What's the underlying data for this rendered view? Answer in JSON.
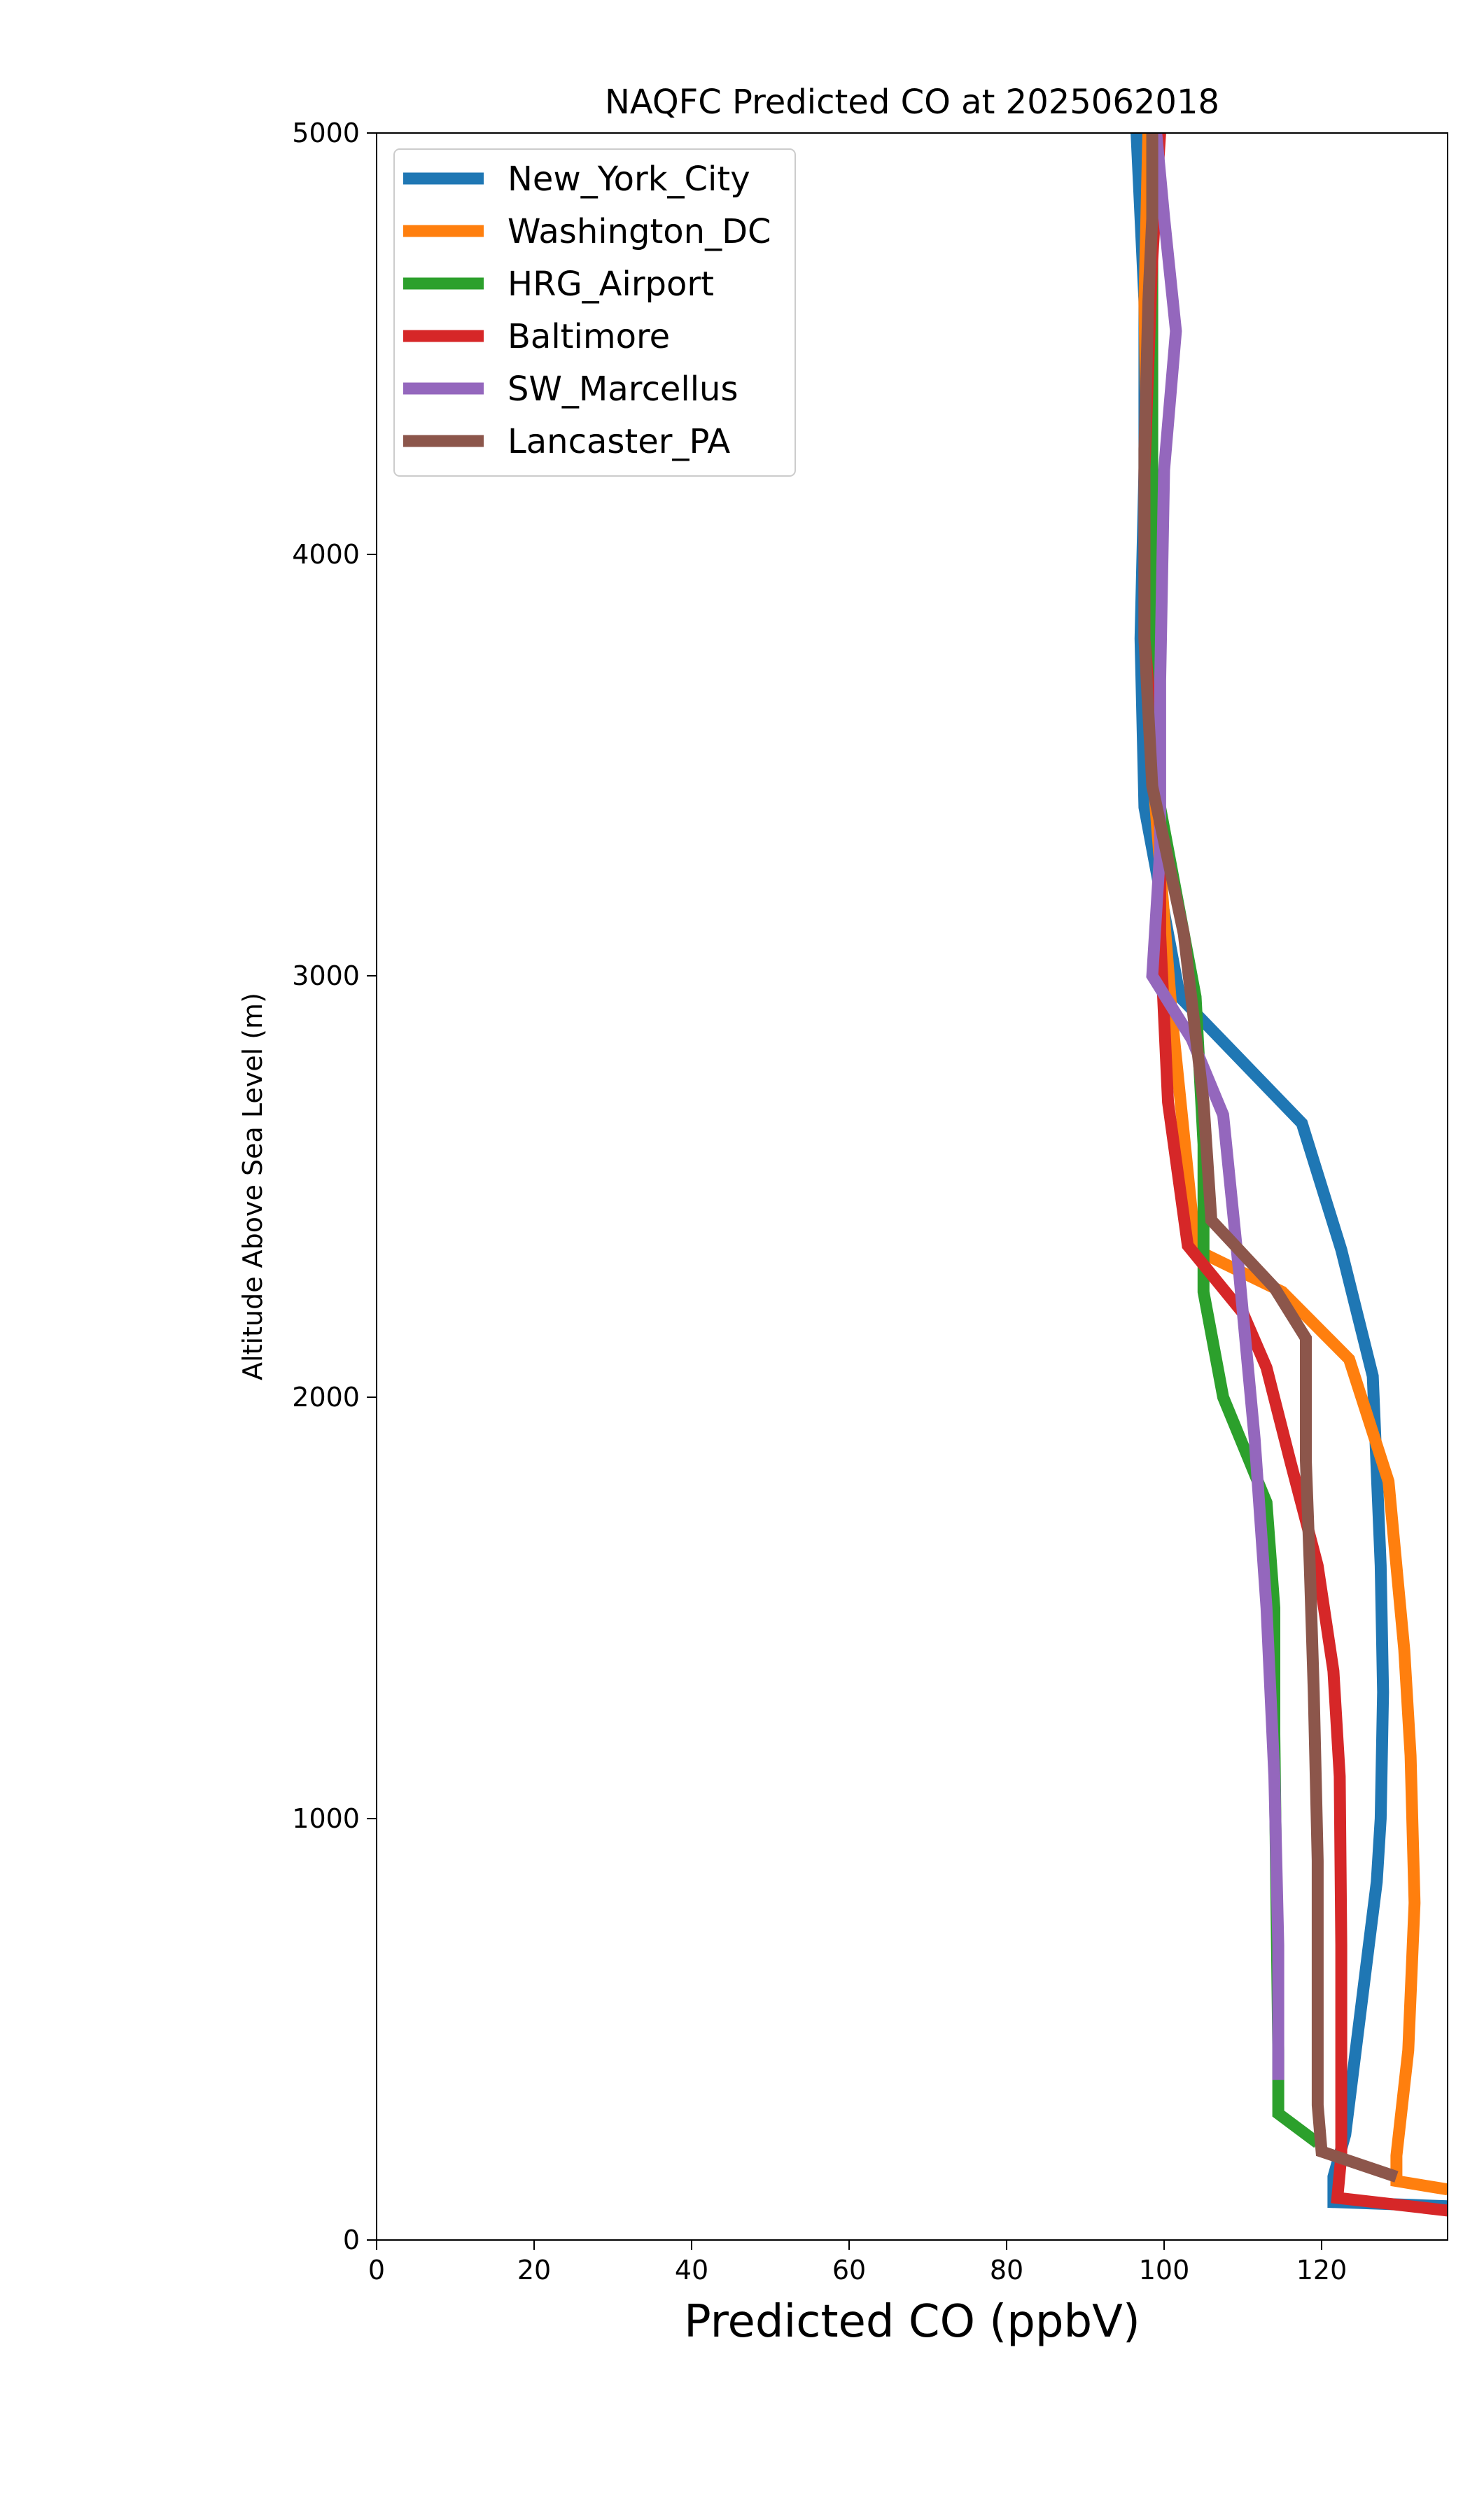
{
  "chart_data": {
    "type": "line",
    "title": "NAQFC Predicted CO at 2025062018",
    "xlabel": "Predicted CO (ppbV)",
    "ylabel": "Altitude Above Sea Level (m)",
    "xlim": [
      0,
      136
    ],
    "ylim": [
      0,
      5000
    ],
    "xticks": [
      0,
      20,
      40,
      60,
      80,
      100,
      120
    ],
    "yticks": [
      0,
      1000,
      2000,
      3000,
      4000,
      5000
    ],
    "grid": false,
    "legend_position": "top-left",
    "series": [
      {
        "name": "New_York_City",
        "color": "#1f77b4",
        "points": [
          [
            136,
            80
          ],
          [
            121.5,
            90
          ],
          [
            121.5,
            150
          ],
          [
            123,
            250
          ],
          [
            126,
            700
          ],
          [
            127,
            850
          ],
          [
            127.5,
            1000
          ],
          [
            127.8,
            1300
          ],
          [
            127.5,
            1600
          ],
          [
            126.5,
            2050
          ],
          [
            122.5,
            2350
          ],
          [
            117.5,
            2650
          ],
          [
            102,
            2950
          ],
          [
            97.5,
            3400
          ],
          [
            97,
            3800
          ],
          [
            97.5,
            4200
          ],
          [
            97.5,
            4600
          ],
          [
            96.5,
            5000
          ]
        ]
      },
      {
        "name": "Washington_DC",
        "color": "#ff7f0e",
        "points": [
          [
            136,
            120
          ],
          [
            129.5,
            140
          ],
          [
            129.5,
            200
          ],
          [
            131,
            450
          ],
          [
            131.8,
            800
          ],
          [
            131.3,
            1150
          ],
          [
            130.5,
            1400
          ],
          [
            128.5,
            1800
          ],
          [
            123.5,
            2090
          ],
          [
            115,
            2250
          ],
          [
            104,
            2350
          ],
          [
            101,
            2900
          ],
          [
            98.5,
            3500
          ],
          [
            98,
            4000
          ],
          [
            97.5,
            4600
          ],
          [
            98,
            5000
          ]
        ]
      },
      {
        "name": "HRG_Airport",
        "color": "#2ca02c",
        "points": [
          [
            119.5,
            230
          ],
          [
            114.5,
            300
          ],
          [
            114.5,
            450
          ],
          [
            114,
            1200
          ],
          [
            114,
            1500
          ],
          [
            113,
            1750
          ],
          [
            107.5,
            2000
          ],
          [
            105,
            2250
          ],
          [
            105,
            2600
          ],
          [
            104,
            2950
          ],
          [
            98.5,
            3500
          ],
          [
            98.5,
            4000
          ],
          [
            98.5,
            4500
          ],
          [
            98.5,
            5000
          ]
        ]
      },
      {
        "name": "Baltimore",
        "color": "#d62728",
        "points": [
          [
            136,
            70
          ],
          [
            122,
            100
          ],
          [
            122.5,
            200
          ],
          [
            122.5,
            400
          ],
          [
            122.5,
            700
          ],
          [
            122.3,
            1100
          ],
          [
            121.5,
            1350
          ],
          [
            119.5,
            1600
          ],
          [
            116,
            1850
          ],
          [
            113,
            2070
          ],
          [
            110,
            2200
          ],
          [
            103,
            2360
          ],
          [
            100.5,
            2700
          ],
          [
            99.5,
            3100
          ],
          [
            99.5,
            3350
          ],
          [
            97.5,
            3800
          ],
          [
            97.5,
            4200
          ],
          [
            98.5,
            4700
          ],
          [
            99.5,
            5000
          ]
        ]
      },
      {
        "name": "SW_Marcellus",
        "color": "#9467bd",
        "points": [
          [
            114.5,
            380
          ],
          [
            114.5,
            700
          ],
          [
            114,
            1100
          ],
          [
            113,
            1500
          ],
          [
            111.5,
            1900
          ],
          [
            109.5,
            2300
          ],
          [
            107.5,
            2670
          ],
          [
            103.5,
            2850
          ],
          [
            98.5,
            3000
          ],
          [
            99.5,
            3300
          ],
          [
            99.5,
            3700
          ],
          [
            100,
            4200
          ],
          [
            101.5,
            4530
          ],
          [
            100,
            4800
          ],
          [
            99,
            5000
          ]
        ]
      },
      {
        "name": "Lancaster_PA",
        "color": "#8c564b",
        "points": [
          [
            129.5,
            150
          ],
          [
            120,
            210
          ],
          [
            119.5,
            320
          ],
          [
            119.5,
            600
          ],
          [
            119.5,
            900
          ],
          [
            119,
            1300
          ],
          [
            118.5,
            1600
          ],
          [
            118,
            1850
          ],
          [
            118,
            2140
          ],
          [
            114,
            2260
          ],
          [
            106,
            2420
          ],
          [
            105,
            2700
          ],
          [
            102.5,
            3100
          ],
          [
            98.5,
            3450
          ],
          [
            97.5,
            3800
          ],
          [
            97.5,
            4250
          ],
          [
            98,
            4600
          ],
          [
            98.5,
            4800
          ],
          [
            98.5,
            5000
          ]
        ]
      }
    ]
  }
}
